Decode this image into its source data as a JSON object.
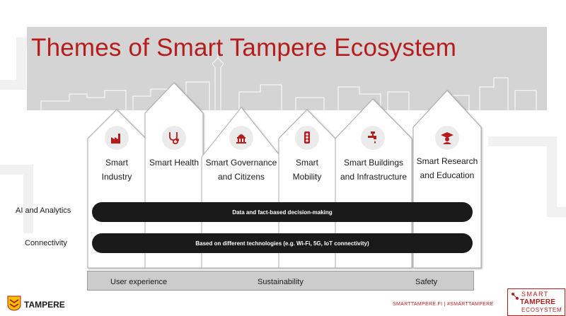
{
  "title": "Themes of Smart Tampere Ecosystem",
  "themes": [
    {
      "line1": "Smart",
      "line2": "Industry",
      "icon": "factory-icon"
    },
    {
      "line1": "Smart Health",
      "line2": "",
      "icon": "stethoscope-icon"
    },
    {
      "line1": "Smart Governance",
      "line2": "and Citizens",
      "icon": "government-building-icon"
    },
    {
      "line1": "Smart",
      "line2": "Mobility",
      "icon": "traffic-light-icon"
    },
    {
      "line1": "Smart Buildings",
      "line2": "and Infrastructure",
      "icon": "water-tap-icon"
    },
    {
      "line1": "Smart Research",
      "line2": "and Education",
      "icon": "graduate-icon"
    }
  ],
  "layers": [
    {
      "label": "AI and Analytics",
      "bar_text": "Data and fact-based decision-making"
    },
    {
      "label": "Connectivity",
      "bar_text": "Based on different technologies (e.g. Wi-Fi, 5G, IoT connectivity)"
    }
  ],
  "foundation": [
    "User experience",
    "Sustainability",
    "Safety"
  ],
  "logo_text": "TAMPERE",
  "footer": "SMARTTAMPERE.FI  |  #SMARTTAMPERE",
  "brand": {
    "line1": "SMART",
    "line2": "TAMPERE",
    "line3": "ECOSYSTEM"
  },
  "colors": {
    "accent": "#b71c1c",
    "bar": "#1a1a1a",
    "band": "#d4d4d4",
    "icon_bg": "#ebebeb"
  }
}
